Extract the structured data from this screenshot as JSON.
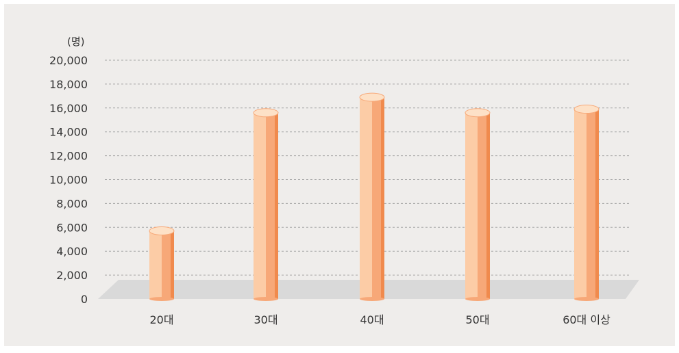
{
  "chart_data": {
    "type": "bar",
    "unit_label": "(명)",
    "categories": [
      "20대",
      "30대",
      "40대",
      "50대",
      "60대 이상"
    ],
    "values": [
      5700,
      15600,
      16900,
      15600,
      15900
    ],
    "ylim": [
      0,
      20000
    ],
    "yticks": [
      "0",
      "2,000",
      "4,000",
      "6,000",
      "8,000",
      "10,000",
      "12,000",
      "14,000",
      "16,000",
      "18,000",
      "20,000"
    ],
    "grid": true,
    "legend": "none"
  },
  "colors": {
    "background": "#efedeb",
    "floor": "#d9d9d9",
    "gridline": "#a6a6a6",
    "bar_light": "#fccca6",
    "bar_mid": "#f7a878",
    "bar_dark": "#f08a4d",
    "bar_top": "#fde1c7"
  }
}
